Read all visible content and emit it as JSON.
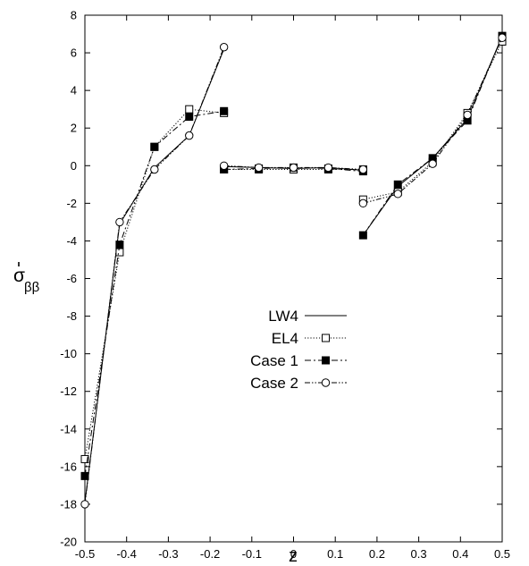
{
  "chart_data": {
    "type": "line",
    "xlabel": "z",
    "ylabel": "σ̄ββ",
    "ylabel_main": "σ",
    "ylabel_sub": "ββ",
    "xlim": [
      -0.5,
      0.5
    ],
    "ylim": [
      -20,
      8
    ],
    "xticks": [
      -0.5,
      -0.4,
      -0.3,
      -0.2,
      -0.1,
      0,
      0.1,
      0.2,
      0.3,
      0.4,
      0.5
    ],
    "xtick_labels": [
      "-0.5",
      "-0.4",
      "-0.3",
      "-0.2",
      "-0.1",
      "0",
      "0.1",
      "0.2",
      "0.3",
      "0.4",
      "0.5"
    ],
    "yticks": [
      -20,
      -18,
      -16,
      -14,
      -12,
      -10,
      -8,
      -6,
      -4,
      -2,
      0,
      2,
      4,
      6,
      8
    ],
    "ytick_labels": [
      "-20",
      "-18",
      "-16",
      "-14",
      "-12",
      "-10",
      "-8",
      "-6",
      "-4",
      "-2",
      "0",
      "2",
      "4",
      "6",
      "8"
    ],
    "grid": false,
    "legend_position": "center",
    "series": [
      {
        "name": "LW4",
        "style": "solid",
        "marker": "none",
        "segments": [
          [
            [
              -0.5,
              -17.9
            ],
            [
              -0.4167,
              -3.1
            ],
            [
              -0.3333,
              -0.1
            ],
            [
              -0.25,
              1.6
            ],
            [
              -0.1667,
              6.2
            ]
          ],
          [
            [
              -0.1667,
              -0.05
            ],
            [
              -0.0833,
              -0.1
            ],
            [
              0,
              -0.15
            ],
            [
              0.0833,
              -0.1
            ],
            [
              0.1667,
              -0.25
            ]
          ],
          [
            [
              0.1667,
              -3.7
            ],
            [
              0.25,
              -1.1
            ],
            [
              0.3333,
              0.4
            ],
            [
              0.4167,
              2.5
            ],
            [
              0.5,
              6.9
            ]
          ]
        ]
      },
      {
        "name": "EL4",
        "style": "dotted",
        "marker": "open-square",
        "segments": [
          [
            [
              -0.5,
              -15.6
            ],
            [
              -0.4167,
              -4.6
            ],
            [
              -0.3333,
              1.0
            ],
            [
              -0.25,
              3.0
            ],
            [
              -0.1667,
              2.8
            ]
          ],
          [
            [
              -0.1667,
              -0.2
            ],
            [
              -0.0833,
              -0.2
            ],
            [
              0,
              -0.2
            ],
            [
              0.0833,
              -0.2
            ],
            [
              0.1667,
              -0.2
            ]
          ],
          [
            [
              0.1667,
              -1.8
            ],
            [
              0.25,
              -1.4
            ],
            [
              0.3333,
              0.2
            ],
            [
              0.4167,
              2.8
            ],
            [
              0.5,
              6.6
            ]
          ]
        ]
      },
      {
        "name": "Case 1",
        "style": "dashdot",
        "marker": "filled-square",
        "segments": [
          [
            [
              -0.5,
              -16.5
            ],
            [
              -0.4167,
              -4.2
            ],
            [
              -0.3333,
              1.0
            ],
            [
              -0.25,
              2.6
            ],
            [
              -0.1667,
              2.9
            ]
          ],
          [
            [
              -0.1667,
              -0.2
            ],
            [
              -0.0833,
              -0.15
            ],
            [
              0,
              -0.1
            ],
            [
              0.0833,
              -0.15
            ],
            [
              0.1667,
              -0.3
            ]
          ],
          [
            [
              0.1667,
              -3.7
            ],
            [
              0.25,
              -1.0
            ],
            [
              0.3333,
              0.4
            ],
            [
              0.4167,
              2.4
            ],
            [
              0.5,
              6.9
            ]
          ]
        ]
      },
      {
        "name": "Case 2",
        "style": "dashdotdot",
        "marker": "open-circle",
        "segments": [
          [
            [
              -0.5,
              -18.0
            ],
            [
              -0.4167,
              -3.0
            ],
            [
              -0.3333,
              -0.2
            ],
            [
              -0.25,
              1.6
            ],
            [
              -0.1667,
              6.3
            ]
          ],
          [
            [
              -0.1667,
              0.0
            ],
            [
              -0.0833,
              -0.1
            ],
            [
              0,
              -0.1
            ],
            [
              0.0833,
              -0.1
            ],
            [
              0.1667,
              -0.2
            ]
          ],
          [
            [
              0.1667,
              -2.0
            ],
            [
              0.25,
              -1.5
            ],
            [
              0.3333,
              0.1
            ],
            [
              0.4167,
              2.7
            ],
            [
              0.5,
              6.8
            ]
          ]
        ]
      }
    ]
  }
}
